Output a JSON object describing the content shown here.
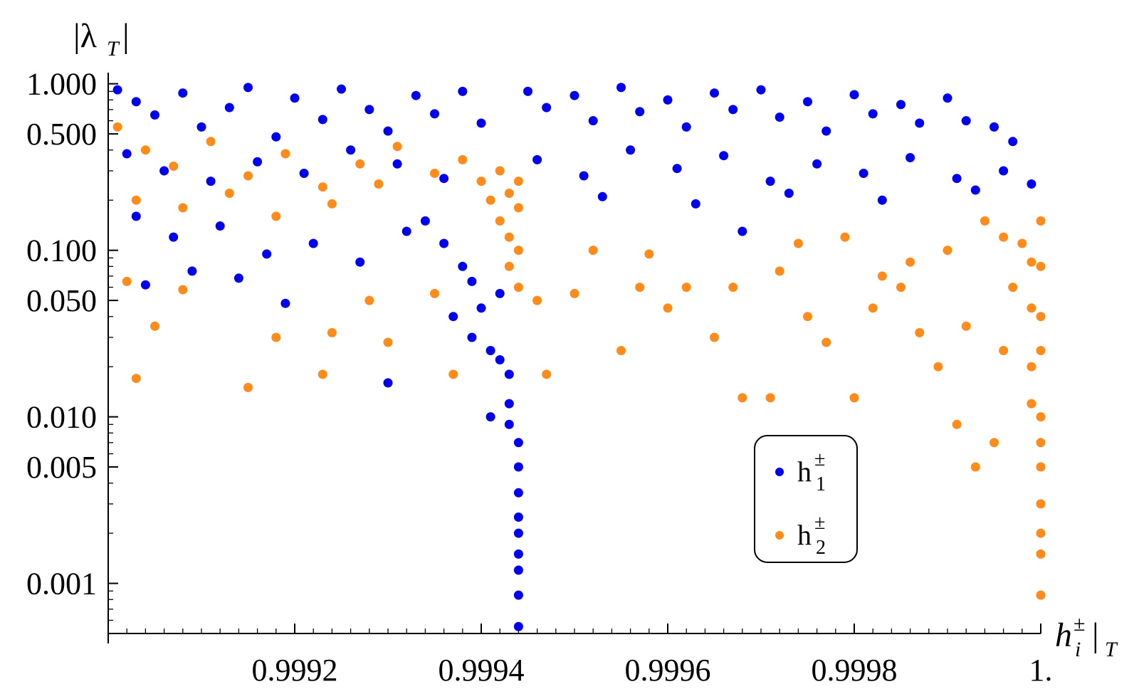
{
  "chart_data": {
    "type": "scatter",
    "title": "",
    "xlabel": "h_i^± |_T",
    "ylabel": "|λ_T|",
    "x_scale": "linear",
    "y_scale": "log",
    "xlim": [
      0.999,
      1.0
    ],
    "ylim": [
      0.0005,
      1.1
    ],
    "x_ticks": [
      {
        "value": 0.9992,
        "label": "0.9992"
      },
      {
        "value": 0.9994,
        "label": "0.9994"
      },
      {
        "value": 0.9996,
        "label": "0.9996"
      },
      {
        "value": 0.9998,
        "label": "0.9998"
      },
      {
        "value": 1.0,
        "label": "1."
      }
    ],
    "y_ticks": [
      {
        "value": 1.0,
        "label": "1.000"
      },
      {
        "value": 0.5,
        "label": "0.500"
      },
      {
        "value": 0.1,
        "label": "0.100"
      },
      {
        "value": 0.05,
        "label": "0.050"
      },
      {
        "value": 0.01,
        "label": "0.010"
      },
      {
        "value": 0.005,
        "label": "0.005"
      },
      {
        "value": 0.001,
        "label": "0.001"
      }
    ],
    "legend": {
      "position": "center-right",
      "entries": [
        {
          "base": "h",
          "sup": "±",
          "sub": "1",
          "color": "#0000ee"
        },
        {
          "base": "h",
          "sup": "±",
          "sub": "2",
          "color": "#ff8c1a"
        }
      ]
    },
    "series": [
      {
        "name": "h1±",
        "color": "#0000ee",
        "points": [
          [
            0.99901,
            0.92
          ],
          [
            0.99903,
            0.78
          ],
          [
            0.99905,
            0.65
          ],
          [
            0.99908,
            0.88
          ],
          [
            0.9991,
            0.55
          ],
          [
            0.99913,
            0.72
          ],
          [
            0.99915,
            0.95
          ],
          [
            0.99918,
            0.48
          ],
          [
            0.9992,
            0.82
          ],
          [
            0.99923,
            0.61
          ],
          [
            0.99925,
            0.93
          ],
          [
            0.99928,
            0.7
          ],
          [
            0.9993,
            0.52
          ],
          [
            0.99933,
            0.85
          ],
          [
            0.99935,
            0.66
          ],
          [
            0.99938,
            0.9
          ],
          [
            0.9994,
            0.58
          ],
          [
            0.99902,
            0.38
          ],
          [
            0.99906,
            0.3
          ],
          [
            0.99911,
            0.26
          ],
          [
            0.99916,
            0.34
          ],
          [
            0.99921,
            0.29
          ],
          [
            0.99926,
            0.4
          ],
          [
            0.99931,
            0.33
          ],
          [
            0.99936,
            0.27
          ],
          [
            0.99903,
            0.16
          ],
          [
            0.99907,
            0.12
          ],
          [
            0.99912,
            0.14
          ],
          [
            0.99917,
            0.095
          ],
          [
            0.99922,
            0.11
          ],
          [
            0.99927,
            0.085
          ],
          [
            0.99932,
            0.13
          ],
          [
            0.99904,
            0.062
          ],
          [
            0.99909,
            0.075
          ],
          [
            0.99914,
            0.068
          ],
          [
            0.99919,
            0.048
          ],
          [
            0.9993,
            0.016
          ],
          [
            0.99937,
            0.04
          ],
          [
            0.99939,
            0.03
          ],
          [
            0.99941,
            0.025
          ],
          [
            0.99942,
            0.055
          ],
          [
            0.99942,
            0.022
          ],
          [
            0.99943,
            0.018
          ],
          [
            0.99943,
            0.012
          ],
          [
            0.99943,
            0.009
          ],
          [
            0.99944,
            0.007
          ],
          [
            0.99944,
            0.005
          ],
          [
            0.99944,
            0.0035
          ],
          [
            0.99944,
            0.0025
          ],
          [
            0.99944,
            0.002
          ],
          [
            0.99944,
            0.0015
          ],
          [
            0.99944,
            0.0012
          ],
          [
            0.99944,
            0.00085
          ],
          [
            0.99944,
            0.00055
          ],
          [
            0.99941,
            0.01
          ],
          [
            0.9994,
            0.045
          ],
          [
            0.99939,
            0.065
          ],
          [
            0.99938,
            0.08
          ],
          [
            0.99936,
            0.11
          ],
          [
            0.99934,
            0.15
          ],
          [
            0.99945,
            0.9
          ],
          [
            0.99947,
            0.72
          ],
          [
            0.9995,
            0.85
          ],
          [
            0.99952,
            0.6
          ],
          [
            0.99955,
            0.95
          ],
          [
            0.99957,
            0.68
          ],
          [
            0.9996,
            0.8
          ],
          [
            0.99962,
            0.55
          ],
          [
            0.99965,
            0.88
          ],
          [
            0.99967,
            0.7
          ],
          [
            0.9997,
            0.92
          ],
          [
            0.99972,
            0.63
          ],
          [
            0.99975,
            0.78
          ],
          [
            0.99977,
            0.52
          ],
          [
            0.9998,
            0.86
          ],
          [
            0.99982,
            0.66
          ],
          [
            0.99985,
            0.75
          ],
          [
            0.99987,
            0.58
          ],
          [
            0.9999,
            0.82
          ],
          [
            0.99992,
            0.6
          ],
          [
            0.99995,
            0.55
          ],
          [
            0.99997,
            0.45
          ],
          [
            0.99946,
            0.35
          ],
          [
            0.99951,
            0.28
          ],
          [
            0.99956,
            0.4
          ],
          [
            0.99961,
            0.31
          ],
          [
            0.99966,
            0.37
          ],
          [
            0.99971,
            0.26
          ],
          [
            0.99976,
            0.33
          ],
          [
            0.99981,
            0.29
          ],
          [
            0.99986,
            0.36
          ],
          [
            0.99991,
            0.27
          ],
          [
            0.99996,
            0.3
          ],
          [
            0.99999,
            0.25
          ],
          [
            0.99953,
            0.21
          ],
          [
            0.99963,
            0.19
          ],
          [
            0.99973,
            0.22
          ],
          [
            0.99983,
            0.2
          ],
          [
            0.99993,
            0.23
          ],
          [
            0.99968,
            0.13
          ]
        ]
      },
      {
        "name": "h2±",
        "color": "#ff8c1a",
        "points": [
          [
            0.99901,
            0.55
          ],
          [
            0.99904,
            0.4
          ],
          [
            0.99907,
            0.32
          ],
          [
            0.99911,
            0.45
          ],
          [
            0.99915,
            0.28
          ],
          [
            0.99919,
            0.38
          ],
          [
            0.99923,
            0.24
          ],
          [
            0.99927,
            0.33
          ],
          [
            0.99931,
            0.42
          ],
          [
            0.99935,
            0.29
          ],
          [
            0.99903,
            0.2
          ],
          [
            0.99908,
            0.18
          ],
          [
            0.99913,
            0.22
          ],
          [
            0.99918,
            0.16
          ],
          [
            0.99924,
            0.19
          ],
          [
            0.99929,
            0.25
          ],
          [
            0.99902,
            0.065
          ],
          [
            0.99905,
            0.035
          ],
          [
            0.99903,
            0.017
          ],
          [
            0.99915,
            0.015
          ],
          [
            0.99908,
            0.058
          ],
          [
            0.99918,
            0.03
          ],
          [
            0.99924,
            0.032
          ],
          [
            0.99923,
            0.018
          ],
          [
            0.9993,
            0.028
          ],
          [
            0.99928,
            0.05
          ],
          [
            0.99935,
            0.055
          ],
          [
            0.99937,
            0.018
          ],
          [
            0.99938,
            0.35
          ],
          [
            0.9994,
            0.26
          ],
          [
            0.99941,
            0.2
          ],
          [
            0.99942,
            0.3
          ],
          [
            0.99942,
            0.15
          ],
          [
            0.99943,
            0.22
          ],
          [
            0.99943,
            0.12
          ],
          [
            0.99943,
            0.08
          ],
          [
            0.99944,
            0.18
          ],
          [
            0.99944,
            0.1
          ],
          [
            0.99944,
            0.06
          ],
          [
            0.99944,
            0.26
          ],
          [
            0.99946,
            0.05
          ],
          [
            0.99947,
            0.018
          ],
          [
            0.9995,
            0.055
          ],
          [
            0.99952,
            0.1
          ],
          [
            0.99955,
            0.025
          ],
          [
            0.99957,
            0.06
          ],
          [
            0.99958,
            0.095
          ],
          [
            0.9996,
            0.045
          ],
          [
            0.99962,
            0.06
          ],
          [
            0.99965,
            0.03
          ],
          [
            0.99967,
            0.06
          ],
          [
            0.99968,
            0.013
          ],
          [
            0.99971,
            0.013
          ],
          [
            0.99972,
            0.075
          ],
          [
            0.99975,
            0.04
          ],
          [
            0.99977,
            0.028
          ],
          [
            0.9998,
            0.013
          ],
          [
            0.99982,
            0.045
          ],
          [
            0.99985,
            0.06
          ],
          [
            0.99987,
            0.032
          ],
          [
            0.99989,
            0.02
          ],
          [
            0.99991,
            0.009
          ],
          [
            0.99992,
            0.035
          ],
          [
            0.99993,
            0.005
          ],
          [
            0.99995,
            0.007
          ],
          [
            0.99996,
            0.025
          ],
          [
            0.99997,
            0.06
          ],
          [
            0.99998,
            0.11
          ],
          [
            0.99999,
            0.085
          ],
          [
            0.99999,
            0.045
          ],
          [
            0.99999,
            0.02
          ],
          [
            0.99999,
            0.012
          ],
          [
            1.0,
            0.15
          ],
          [
            1.0,
            0.08
          ],
          [
            1.0,
            0.04
          ],
          [
            1.0,
            0.025
          ],
          [
            1.0,
            0.01
          ],
          [
            1.0,
            0.007
          ],
          [
            1.0,
            0.005
          ],
          [
            1.0,
            0.003
          ],
          [
            1.0,
            0.002
          ],
          [
            1.0,
            0.0015
          ],
          [
            1.0,
            0.00085
          ],
          [
            0.99996,
            0.12
          ],
          [
            0.99994,
            0.15
          ],
          [
            0.9999,
            0.1
          ],
          [
            0.99986,
            0.085
          ],
          [
            0.99983,
            0.07
          ],
          [
            0.99979,
            0.12
          ],
          [
            0.99974,
            0.11
          ]
        ]
      }
    ]
  }
}
